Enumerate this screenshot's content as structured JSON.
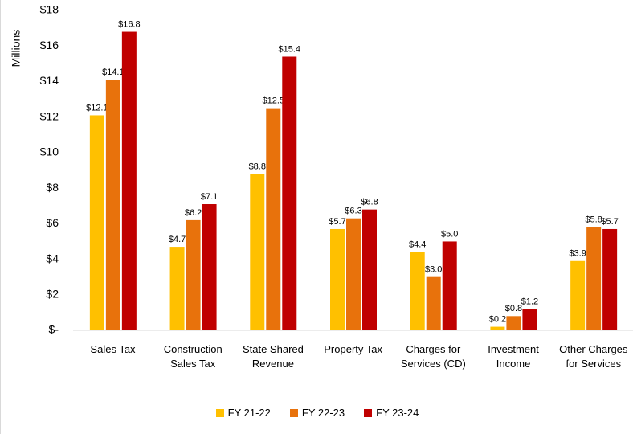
{
  "chart_data": {
    "type": "bar",
    "y_axis_label": "Millions",
    "categories": [
      "Sales Tax",
      "Construction\nSales Tax",
      "State Shared\nRevenue",
      "Property Tax",
      "Charges for\nServices (CD)",
      "Investment\nIncome",
      "Other Charges\nfor Services"
    ],
    "series": [
      {
        "name": "FY 21-22",
        "color": "#ffc000",
        "values": [
          12.1,
          4.7,
          8.8,
          5.7,
          4.4,
          0.2,
          3.9
        ],
        "value_labels": [
          "$12.1",
          "$4.7",
          "$8.8",
          "$5.7",
          "$4.4",
          "$0.2",
          "$3.9"
        ]
      },
      {
        "name": "FY 22-23",
        "color": "#e8720c",
        "values": [
          14.1,
          6.2,
          12.5,
          6.3,
          3.0,
          0.8,
          5.8
        ],
        "value_labels": [
          "$14.1",
          "$6.2",
          "$12.5",
          "$6.3",
          "$3.0",
          "$0.8",
          "$5.8"
        ]
      },
      {
        "name": "FY 23-24",
        "color": "#c00000",
        "values": [
          16.8,
          7.1,
          15.4,
          6.8,
          5.0,
          1.2,
          5.7
        ],
        "value_labels": [
          "$16.8",
          "$7.1",
          "$15.4",
          "$6.8",
          "$5.0",
          "$1.2",
          "$5.7"
        ]
      }
    ],
    "ylim": [
      0,
      18
    ],
    "yticks": [
      {
        "value": 0,
        "label": "$-"
      },
      {
        "value": 2,
        "label": "$2"
      },
      {
        "value": 4,
        "label": "$4"
      },
      {
        "value": 6,
        "label": "$6"
      },
      {
        "value": 8,
        "label": "$8"
      },
      {
        "value": 10,
        "label": "$10"
      },
      {
        "value": 12,
        "label": "$12"
      },
      {
        "value": 14,
        "label": "$14"
      },
      {
        "value": 16,
        "label": "$16"
      },
      {
        "value": 18,
        "label": "$18"
      }
    ],
    "grid": false,
    "legend": "bottom"
  }
}
